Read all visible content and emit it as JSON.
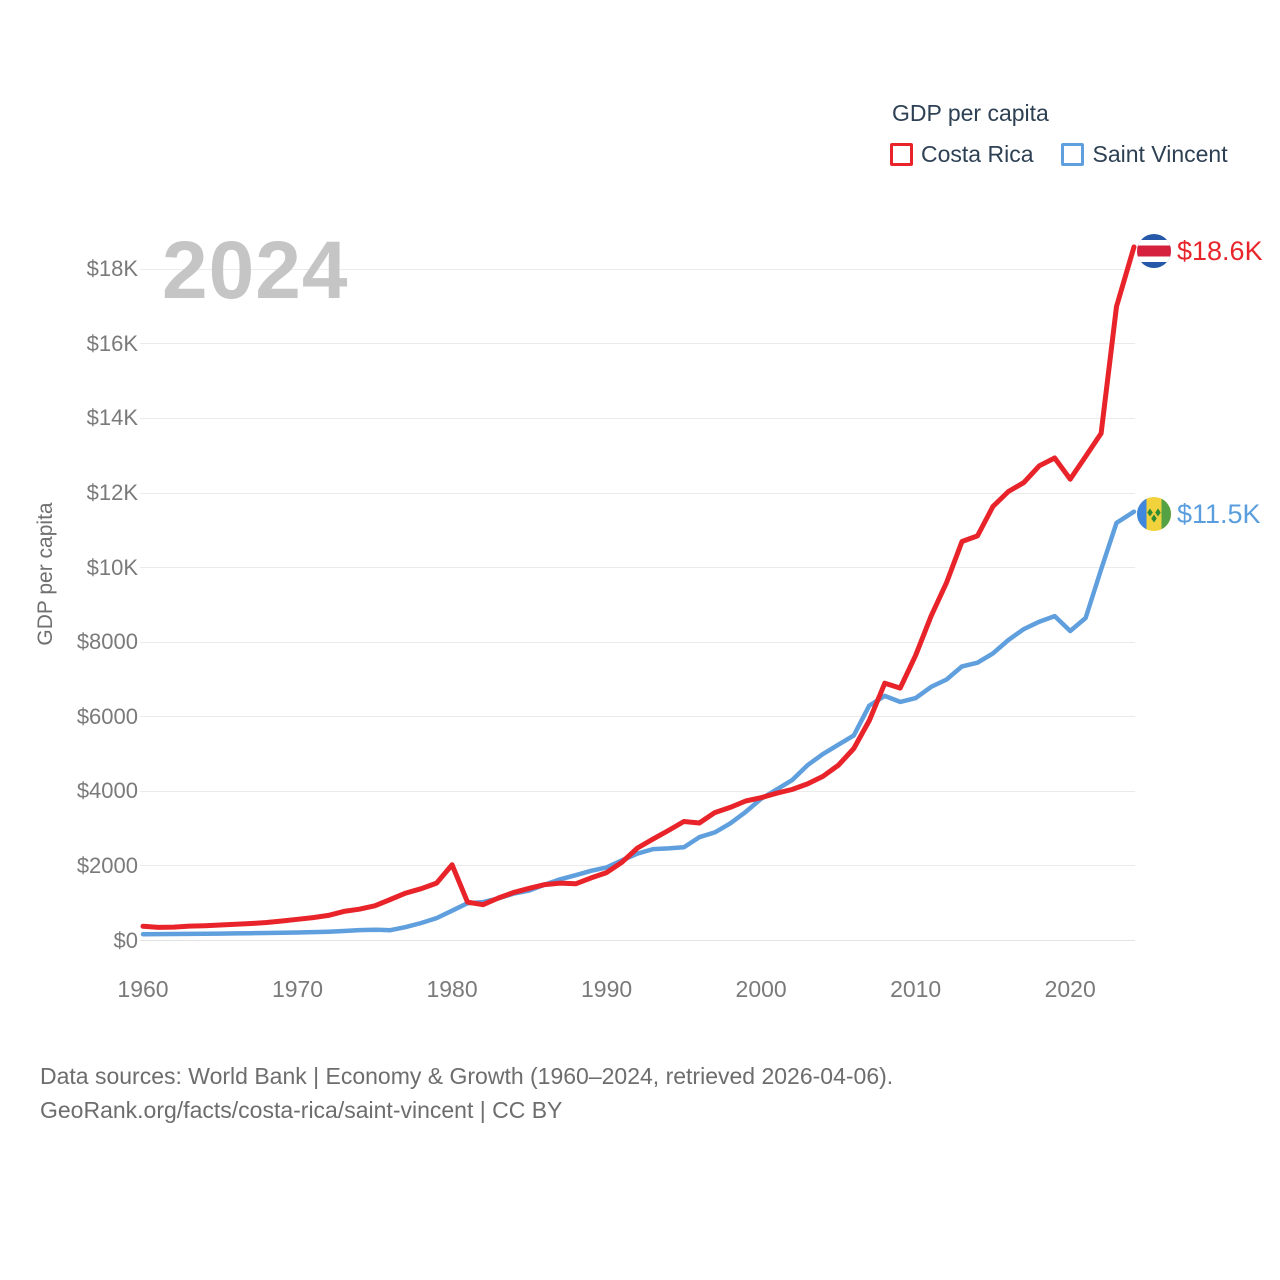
{
  "legend": {
    "title": "GDP per capita",
    "items": [
      {
        "label": "Costa Rica",
        "color": "#e8242a"
      },
      {
        "label": "Saint Vincent",
        "color": "#5f9fdd"
      }
    ]
  },
  "watermark": "2024",
  "chart_data": {
    "type": "line",
    "title": "GDP per capita",
    "xlabel": "",
    "ylabel": "GDP per capita",
    "ylim": [
      0,
      18600
    ],
    "grid": "horizontal",
    "legend_position": "top-right",
    "y_ticks": [
      "$0",
      "$2000",
      "$4000",
      "$6000",
      "$8000",
      "$10K",
      "$12K",
      "$14K",
      "$16K",
      "$18K"
    ],
    "y_tick_values": [
      0,
      2000,
      4000,
      6000,
      8000,
      10000,
      12000,
      14000,
      16000,
      18000
    ],
    "x_ticks": [
      1960,
      1970,
      1980,
      1990,
      2000,
      2010,
      2020
    ],
    "x": [
      1960,
      1961,
      1962,
      1963,
      1964,
      1965,
      1966,
      1967,
      1968,
      1969,
      1970,
      1971,
      1972,
      1973,
      1974,
      1975,
      1976,
      1977,
      1978,
      1979,
      1980,
      1981,
      1982,
      1983,
      1984,
      1985,
      1986,
      1987,
      1988,
      1989,
      1990,
      1991,
      1992,
      1993,
      1994,
      1995,
      1996,
      1997,
      1998,
      1999,
      2000,
      2001,
      2002,
      2003,
      2004,
      2005,
      2006,
      2007,
      2008,
      2009,
      2010,
      2011,
      2012,
      2013,
      2014,
      2015,
      2016,
      2017,
      2018,
      2019,
      2020,
      2021,
      2022,
      2023,
      2024
    ],
    "series": [
      {
        "name": "Costa Rica",
        "color": "#e8242a",
        "end_label": "$18.6K",
        "values": [
          380,
          350,
          360,
          385,
          398,
          415,
          437,
          457,
          484,
          522,
          569,
          615,
          672,
          780,
          840,
          930,
          1100,
          1270,
          1390,
          1540,
          2030,
          1030,
          960,
          1140,
          1290,
          1400,
          1500,
          1540,
          1520,
          1680,
          1820,
          2100,
          2480,
          2720,
          2950,
          3190,
          3150,
          3430,
          3570,
          3740,
          3830,
          3950,
          4050,
          4200,
          4400,
          4700,
          5150,
          5900,
          6900,
          6770,
          7650,
          8700,
          9600,
          10700,
          10850,
          11640,
          12040,
          12280,
          12730,
          12940,
          12370,
          12980,
          13600,
          17000,
          18600
        ]
      },
      {
        "name": "Saint Vincent",
        "color": "#5f9fdd",
        "end_label": "$11.5K",
        "values": [
          170,
          172,
          174,
          177,
          181,
          186,
          191,
          196,
          201,
          207,
          215,
          225,
          235,
          255,
          280,
          290,
          275,
          360,
          470,
          600,
          800,
          1000,
          1030,
          1130,
          1260,
          1340,
          1500,
          1640,
          1750,
          1870,
          1960,
          2150,
          2330,
          2450,
          2470,
          2500,
          2770,
          2900,
          3140,
          3450,
          3800,
          4050,
          4300,
          4700,
          5000,
          5250,
          5500,
          6300,
          6560,
          6400,
          6500,
          6800,
          7000,
          7350,
          7450,
          7700,
          8060,
          8350,
          8550,
          8700,
          8300,
          8650,
          9950,
          11200,
          11500
        ]
      }
    ]
  },
  "footer": {
    "line1": "Data sources: World Bank | Economy & Growth (1960–2024, retrieved 2026-04-06).",
    "line2": "GeoRank.org/facts/costa-rica/saint-vincent | CC BY"
  }
}
